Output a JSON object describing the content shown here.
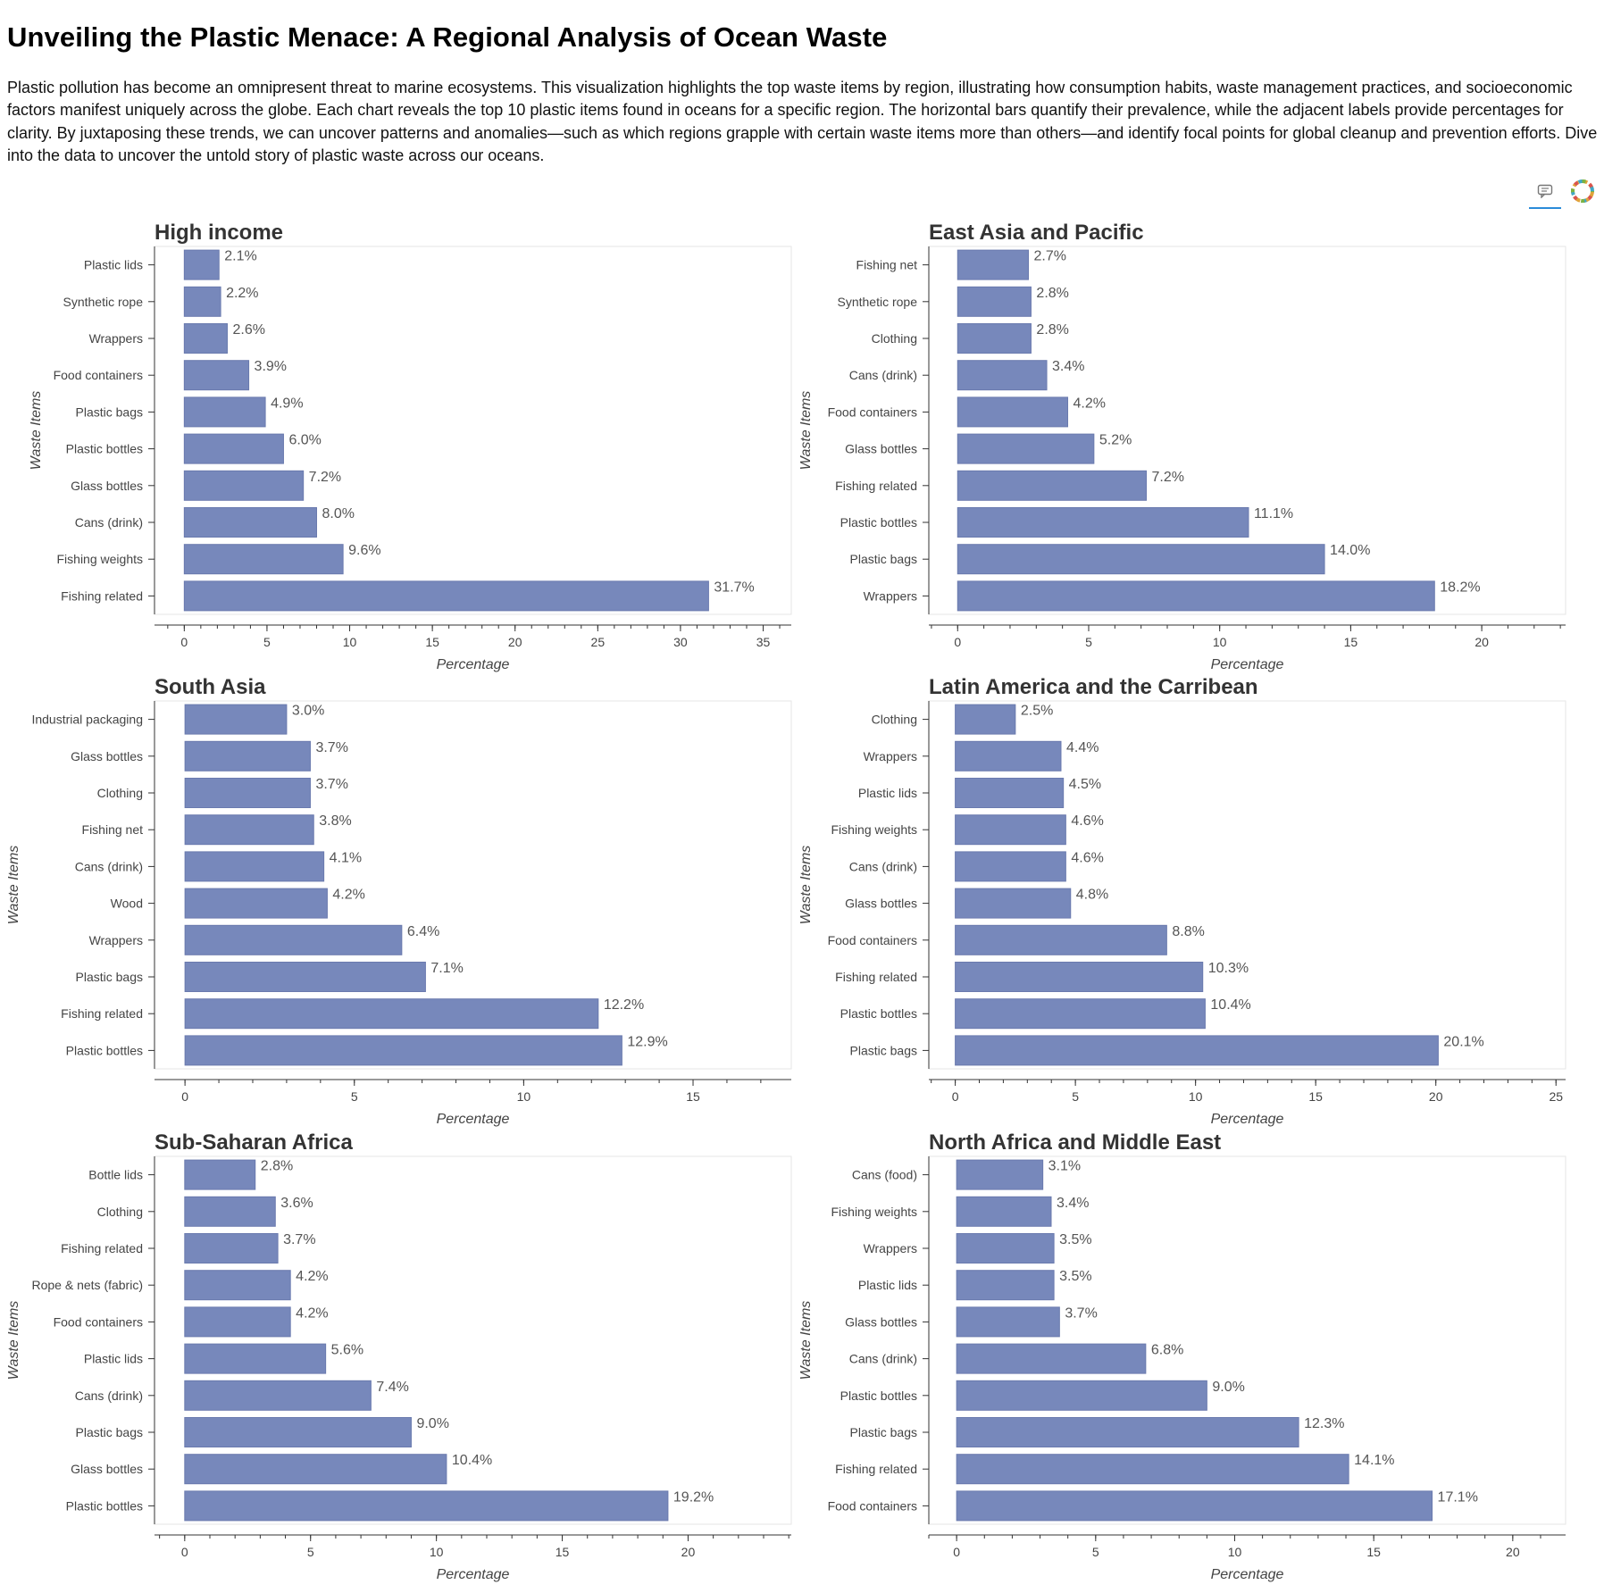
{
  "page": {
    "title": "Unveiling the Plastic Menace: A Regional Analysis of Ocean Waste",
    "description": "Plastic pollution has become an omnipresent threat to marine ecosystems. This visualization highlights the top waste items by region, illustrating how consumption habits, waste management practices, and socioeconomic factors manifest uniquely across the globe. Each chart reveals the top 10 plastic items found in oceans for a specific region. The horizontal bars quantify their prevalence, while the adjacent labels provide percentages for clarity. By juxtaposing these trends, we can uncover patterns and anomalies—such as which regions grapple with certain waste items more than others—and identify focal points for global cleanup and prevention efforts. Dive into the data to uncover the untold story of plastic waste across our oceans."
  },
  "toolbar": {
    "icons": [
      "help-icon",
      "bokeh-logo-icon"
    ],
    "active_color": "#2a8bd9"
  },
  "colors": {
    "bar": "#7788bb",
    "bar_stroke": "#6a7aae",
    "axis": "#333333",
    "frame": "#e6e6e6"
  },
  "chart_data": [
    {
      "type": "bar",
      "orientation": "horizontal",
      "title": "High income",
      "xlabel": "Percentage",
      "ylabel": "Waste Items",
      "xlim": [
        -1.8,
        36.7
      ],
      "xticks": [
        0,
        5,
        10,
        15,
        20,
        25,
        30,
        35
      ],
      "minor_step": 1,
      "categories": [
        "Plastic lids",
        "Synthetic rope",
        "Wrappers",
        "Food containers",
        "Plastic bags",
        "Plastic bottles",
        "Glass bottles",
        "Cans (drink)",
        "Fishing weights",
        "Fishing related"
      ],
      "values": [
        2.1,
        2.2,
        2.6,
        3.9,
        4.9,
        6.0,
        7.2,
        8.0,
        9.6,
        31.7
      ],
      "labels": [
        "2.1%",
        "2.2%",
        "2.6%",
        "3.9%",
        "4.9%",
        "6.0%",
        "7.2%",
        "8.0%",
        "9.6%",
        "31.7%"
      ],
      "grid": false
    },
    {
      "type": "bar",
      "orientation": "horizontal",
      "title": "East Asia and Pacific",
      "xlabel": "Percentage",
      "ylabel": "Waste Items",
      "xlim": [
        -1.1,
        23.2
      ],
      "xticks": [
        0,
        5,
        10,
        15,
        20
      ],
      "minor_step": 1,
      "categories": [
        "Fishing net",
        "Synthetic rope",
        "Clothing",
        "Cans (drink)",
        "Food containers",
        "Glass bottles",
        "Fishing related",
        "Plastic bottles",
        "Plastic bags",
        "Wrappers"
      ],
      "values": [
        2.7,
        2.8,
        2.8,
        3.4,
        4.2,
        5.2,
        7.2,
        11.1,
        14.0,
        18.2
      ],
      "labels": [
        "2.7%",
        "2.8%",
        "2.8%",
        "3.4%",
        "4.2%",
        "5.2%",
        "7.2%",
        "11.1%",
        "14.0%",
        "18.2%"
      ],
      "grid": false
    },
    {
      "type": "bar",
      "orientation": "horizontal",
      "title": "South Asia",
      "xlabel": "Percentage",
      "ylabel": "Waste Items",
      "xlim": [
        -0.9,
        17.9
      ],
      "xticks": [
        0,
        5,
        10,
        15
      ],
      "minor_step": 1,
      "categories": [
        "Industrial packaging",
        "Glass bottles",
        "Clothing",
        "Fishing net",
        "Cans (drink)",
        "Wood",
        "Wrappers",
        "Plastic bags",
        "Fishing related",
        "Plastic bottles"
      ],
      "values": [
        3.0,
        3.7,
        3.7,
        3.8,
        4.1,
        4.2,
        6.4,
        7.1,
        12.2,
        12.9
      ],
      "labels": [
        "3.0%",
        "3.7%",
        "3.7%",
        "3.8%",
        "4.1%",
        "4.2%",
        "6.4%",
        "7.1%",
        "12.2%",
        "12.9%"
      ],
      "grid": false
    },
    {
      "type": "bar",
      "orientation": "horizontal",
      "title": "Latin America and the Carribean",
      "xlabel": "Percentage",
      "ylabel": "Waste Items",
      "xlim": [
        -1.1,
        25.4
      ],
      "xticks": [
        0,
        5,
        10,
        15,
        20,
        25
      ],
      "minor_step": 1,
      "categories": [
        "Clothing",
        "Wrappers",
        "Plastic lids",
        "Fishing weights",
        "Cans (drink)",
        "Glass bottles",
        "Food containers",
        "Fishing related",
        "Plastic bottles",
        "Plastic bags"
      ],
      "values": [
        2.5,
        4.4,
        4.5,
        4.6,
        4.6,
        4.8,
        8.8,
        10.3,
        10.4,
        20.1
      ],
      "labels": [
        "2.5%",
        "4.4%",
        "4.5%",
        "4.6%",
        "4.6%",
        "4.8%",
        "8.8%",
        "10.3%",
        "10.4%",
        "20.1%"
      ],
      "grid": false
    },
    {
      "type": "bar",
      "orientation": "horizontal",
      "title": "Sub-Saharan Africa",
      "xlabel": "Percentage",
      "ylabel": "Waste Items",
      "xlim": [
        -1.2,
        24.1
      ],
      "xticks": [
        0,
        5,
        10,
        15,
        20
      ],
      "minor_step": 1,
      "categories": [
        "Bottle lids",
        "Clothing",
        "Fishing related",
        "Rope & nets (fabric)",
        "Food containers",
        "Plastic lids",
        "Cans (drink)",
        "Plastic bags",
        "Glass bottles",
        "Plastic bottles"
      ],
      "values": [
        2.8,
        3.6,
        3.7,
        4.2,
        4.2,
        5.6,
        7.4,
        9.0,
        10.4,
        19.2
      ],
      "labels": [
        "2.8%",
        "3.6%",
        "3.7%",
        "4.2%",
        "4.2%",
        "5.6%",
        "7.4%",
        "9.0%",
        "10.4%",
        "19.2%"
      ],
      "grid": false
    },
    {
      "type": "bar",
      "orientation": "horizontal",
      "title": "North Africa and Middle East",
      "xlabel": "Percentage",
      "ylabel": "Waste Items",
      "xlim": [
        -1.0,
        21.9
      ],
      "xticks": [
        0,
        5,
        10,
        15,
        20
      ],
      "minor_step": 1,
      "categories": [
        "Cans (food)",
        "Fishing weights",
        "Wrappers",
        "Plastic lids",
        "Glass bottles",
        "Cans (drink)",
        "Plastic bottles",
        "Plastic bags",
        "Fishing related",
        "Food containers"
      ],
      "values": [
        3.1,
        3.4,
        3.5,
        3.5,
        3.7,
        6.8,
        9.0,
        12.3,
        14.1,
        17.1
      ],
      "labels": [
        "3.1%",
        "3.4%",
        "3.5%",
        "3.5%",
        "3.7%",
        "6.8%",
        "9.0%",
        "12.3%",
        "14.1%",
        "17.1%"
      ],
      "grid": false
    }
  ]
}
